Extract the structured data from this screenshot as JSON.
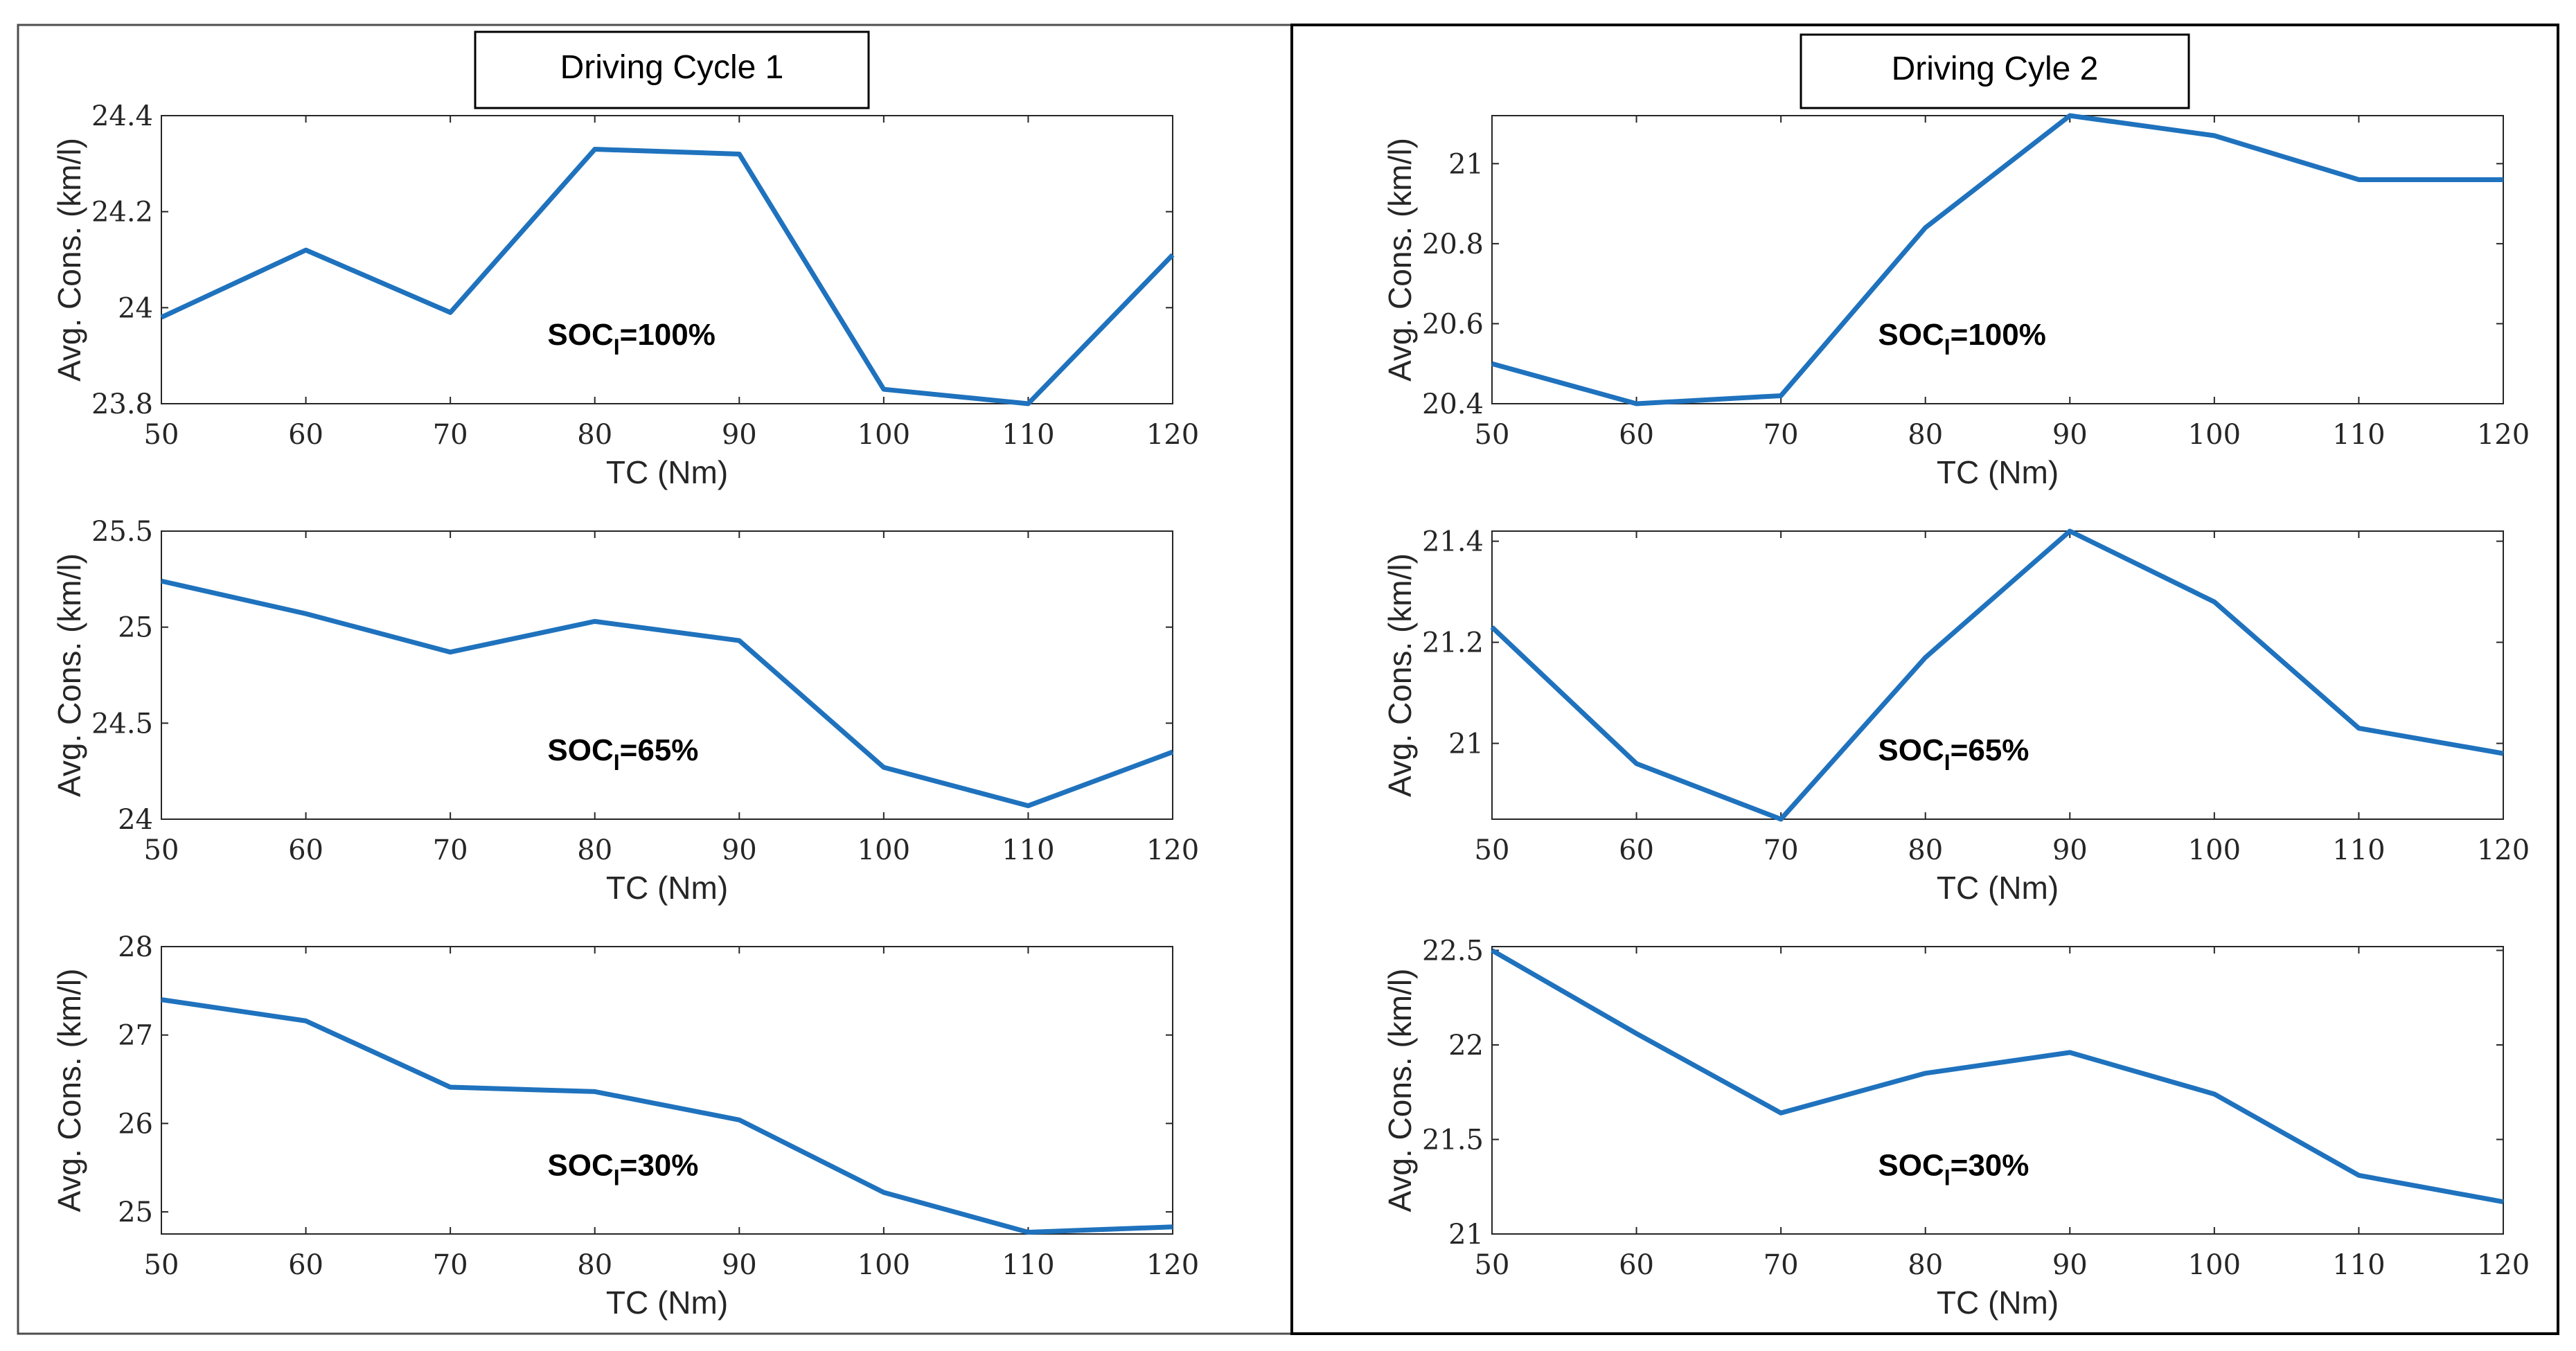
{
  "panels": [
    {
      "title": "Driving Cycle 1",
      "charts": [
        {
          "type": "line",
          "xlabel": "TC (Nm)",
          "ylabel": "Avg. Cons. (km/l)",
          "x": [
            50,
            60,
            70,
            80,
            90,
            100,
            110,
            120
          ],
          "values": [
            23.98,
            24.12,
            23.99,
            24.33,
            24.32,
            23.83,
            23.8,
            24.11
          ],
          "xlim": [
            50,
            120
          ],
          "ylim": [
            23.8,
            24.4
          ],
          "yticks": [
            23.8,
            24,
            24.2,
            24.4
          ],
          "ytick_labels": [
            "23.8",
            "24",
            "24.2",
            "24.4"
          ],
          "annotation": {
            "main": "SOC",
            "sub": "I",
            "tail": "=100%"
          }
        },
        {
          "type": "line",
          "xlabel": "TC (Nm)",
          "ylabel": "Avg. Cons. (km/l)",
          "x": [
            50,
            60,
            70,
            80,
            90,
            100,
            110,
            120
          ],
          "values": [
            25.24,
            25.07,
            24.87,
            25.03,
            24.93,
            24.27,
            24.07,
            24.35
          ],
          "xlim": [
            50,
            120
          ],
          "ylim": [
            24,
            25.5
          ],
          "yticks": [
            24,
            24.5,
            25,
            25.5
          ],
          "ytick_labels": [
            "24",
            "24.5",
            "25",
            "25.5"
          ],
          "annotation": {
            "main": "SOC",
            "sub": "I",
            "tail": "=65%"
          }
        },
        {
          "type": "line",
          "xlabel": "TC (Nm)",
          "ylabel": "Avg. Cons. (km/l)",
          "x": [
            50,
            60,
            70,
            80,
            90,
            100,
            110,
            120
          ],
          "values": [
            27.4,
            27.16,
            26.41,
            26.36,
            26.04,
            25.22,
            24.77,
            24.83
          ],
          "xlim": [
            50,
            120
          ],
          "ylim": [
            24.75,
            28
          ],
          "yticks": [
            25,
            26,
            27,
            28
          ],
          "ytick_labels": [
            "25",
            "26",
            "27",
            "28"
          ],
          "annotation": {
            "main": "SOC",
            "sub": "I",
            "tail": "=30%"
          }
        }
      ]
    },
    {
      "title": "Driving Cyle 2",
      "charts": [
        {
          "type": "line",
          "xlabel": "TC (Nm)",
          "ylabel": "Avg. Cons. (km/l)",
          "x": [
            50,
            60,
            70,
            80,
            90,
            100,
            110,
            120
          ],
          "values": [
            20.5,
            20.4,
            20.42,
            20.84,
            21.12,
            21.07,
            20.96,
            20.96
          ],
          "xlim": [
            50,
            120
          ],
          "ylim": [
            20.4,
            21.12
          ],
          "yticks": [
            20.4,
            20.6,
            20.8,
            21
          ],
          "ytick_labels": [
            "20.4",
            "20.6",
            "20.8",
            "21"
          ],
          "annotation": {
            "main": "SOC",
            "sub": "I",
            "tail": "=100%"
          }
        },
        {
          "type": "line",
          "xlabel": "TC (Nm)",
          "ylabel": "Avg. Cons. (km/l)",
          "x": [
            50,
            60,
            70,
            80,
            90,
            100,
            110,
            120
          ],
          "values": [
            21.23,
            20.96,
            20.85,
            21.17,
            21.42,
            21.28,
            21.03,
            20.98
          ],
          "xlim": [
            50,
            120
          ],
          "ylim": [
            20.85,
            21.42
          ],
          "yticks": [
            21,
            21.2,
            21.4
          ],
          "ytick_labels": [
            "21",
            "21.2",
            "21.4"
          ],
          "annotation": {
            "main": "SOC",
            "sub": "I",
            "tail": "=65%"
          }
        },
        {
          "type": "line",
          "xlabel": "TC (Nm)",
          "ylabel": "Avg. Cons. (km/l)",
          "x": [
            50,
            60,
            70,
            80,
            90,
            100,
            110,
            120
          ],
          "values": [
            22.5,
            22.06,
            21.64,
            21.85,
            21.96,
            21.74,
            21.31,
            21.17
          ],
          "xlim": [
            50,
            120
          ],
          "ylim": [
            21,
            22.52
          ],
          "yticks": [
            21,
            21.5,
            22,
            22.5
          ],
          "ytick_labels": [
            "21",
            "21.5",
            "22",
            "22.5"
          ],
          "annotation": {
            "main": "SOC",
            "sub": "I",
            "tail": "=30%"
          }
        }
      ]
    }
  ],
  "chart_data": [
    {
      "type": "line",
      "panel": "Driving Cycle 1",
      "annotation": "SOC_I=100%",
      "xlabel": "TC (Nm)",
      "ylabel": "Avg. Cons. (km/l)",
      "x": [
        50,
        60,
        70,
        80,
        90,
        100,
        110,
        120
      ],
      "values": [
        23.98,
        24.12,
        23.99,
        24.33,
        24.32,
        23.83,
        23.8,
        24.11
      ],
      "ylim": [
        23.8,
        24.4
      ]
    },
    {
      "type": "line",
      "panel": "Driving Cycle 1",
      "annotation": "SOC_I=65%",
      "xlabel": "TC (Nm)",
      "ylabel": "Avg. Cons. (km/l)",
      "x": [
        50,
        60,
        70,
        80,
        90,
        100,
        110,
        120
      ],
      "values": [
        25.24,
        25.07,
        24.87,
        25.03,
        24.93,
        24.27,
        24.07,
        24.35
      ],
      "ylim": [
        24,
        25.5
      ]
    },
    {
      "type": "line",
      "panel": "Driving Cycle 1",
      "annotation": "SOC_I=30%",
      "xlabel": "TC (Nm)",
      "ylabel": "Avg. Cons. (km/l)",
      "x": [
        50,
        60,
        70,
        80,
        90,
        100,
        110,
        120
      ],
      "values": [
        27.4,
        27.16,
        26.41,
        26.36,
        26.04,
        25.22,
        24.77,
        24.83
      ],
      "ylim": [
        24.75,
        28
      ]
    },
    {
      "type": "line",
      "panel": "Driving Cyle 2",
      "annotation": "SOC_I=100%",
      "xlabel": "TC (Nm)",
      "ylabel": "Avg. Cons. (km/l)",
      "x": [
        50,
        60,
        70,
        80,
        90,
        100,
        110,
        120
      ],
      "values": [
        20.5,
        20.4,
        20.42,
        20.84,
        21.12,
        21.07,
        20.96,
        20.96
      ],
      "ylim": [
        20.4,
        21.12
      ]
    },
    {
      "type": "line",
      "panel": "Driving Cyle 2",
      "annotation": "SOC_I=65%",
      "xlabel": "TC (Nm)",
      "ylabel": "Avg. Cons. (km/l)",
      "x": [
        50,
        60,
        70,
        80,
        90,
        100,
        110,
        120
      ],
      "values": [
        21.23,
        20.96,
        20.85,
        21.17,
        21.42,
        21.28,
        21.03,
        20.98
      ],
      "ylim": [
        20.85,
        21.42
      ]
    },
    {
      "type": "line",
      "panel": "Driving Cyle 2",
      "annotation": "SOC_I=30%",
      "xlabel": "TC (Nm)",
      "ylabel": "Avg. Cons. (km/l)",
      "x": [
        50,
        60,
        70,
        80,
        90,
        100,
        110,
        120
      ],
      "values": [
        22.5,
        22.06,
        21.64,
        21.85,
        21.96,
        21.74,
        21.31,
        21.17
      ],
      "ylim": [
        21,
        22.52
      ]
    }
  ],
  "colors": {
    "line": "#1f72bd",
    "axis": "#262626",
    "frame": "#4d4d4d",
    "panel_border": "#000000"
  }
}
